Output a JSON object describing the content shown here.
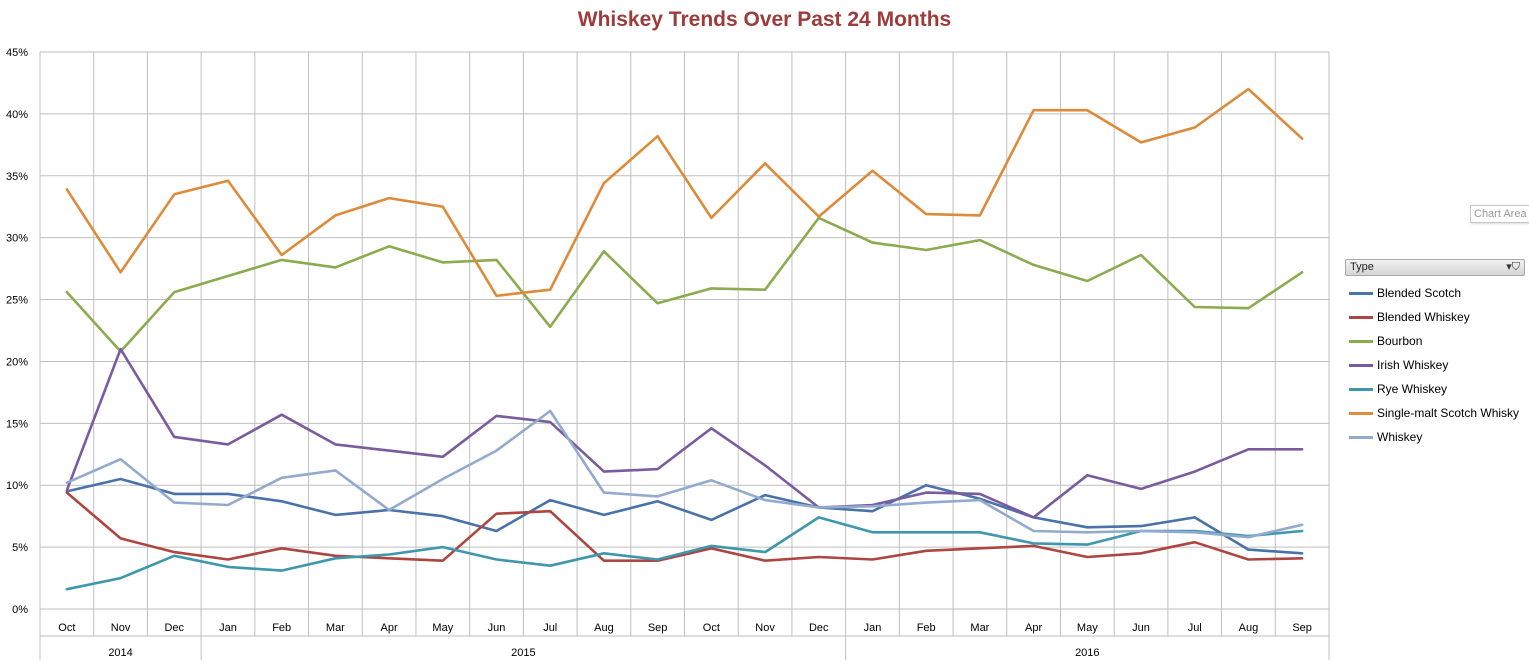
{
  "colors": {
    "title": "#9e3b3b",
    "grid": "#bfbfbf",
    "axis_text": "#000000"
  },
  "tooltip": {
    "text": "Chart Area"
  },
  "legend": {
    "header": "Type",
    "filter_icon": "filter-dropdown-icon"
  },
  "chart_data": {
    "type": "line",
    "title": "Whiskey Trends Over Past 24 Months",
    "categories": [
      "Oct",
      "Nov",
      "Dec",
      "Jan",
      "Feb",
      "Mar",
      "Apr",
      "May",
      "Jun",
      "Jul",
      "Aug",
      "Sep",
      "Oct",
      "Nov",
      "Dec",
      "Jan",
      "Feb",
      "Mar",
      "Apr",
      "May",
      "Jun",
      "Jul",
      "Aug",
      "Sep"
    ],
    "year_groups": [
      {
        "label": "2014",
        "start": 0,
        "end": 2
      },
      {
        "label": "2015",
        "start": 3,
        "end": 14
      },
      {
        "label": "2016",
        "start": 15,
        "end": 23
      }
    ],
    "y_ticks": [
      "0%",
      "5%",
      "10%",
      "15%",
      "20%",
      "25%",
      "30%",
      "35%",
      "40%",
      "45%"
    ],
    "ylim": [
      0,
      45
    ],
    "grid": true,
    "legend_position": "right",
    "series": [
      {
        "name": "Blended Scotch",
        "color": "#4a72aa",
        "values": [
          9.5,
          10.5,
          9.3,
          9.3,
          8.7,
          7.6,
          8.0,
          7.5,
          6.3,
          8.8,
          7.6,
          8.7,
          7.2,
          9.2,
          8.2,
          7.9,
          10.0,
          8.9,
          7.4,
          6.6,
          6.7,
          7.4,
          4.8,
          4.5
        ]
      },
      {
        "name": "Blended Whiskey",
        "color": "#ad4540",
        "values": [
          9.4,
          5.7,
          4.6,
          4.0,
          4.9,
          4.3,
          4.1,
          3.9,
          7.7,
          7.9,
          3.9,
          3.9,
          4.9,
          3.9,
          4.2,
          4.0,
          4.7,
          4.9,
          5.1,
          4.2,
          4.5,
          5.4,
          4.0,
          4.1
        ]
      },
      {
        "name": "Bourbon",
        "color": "#8bab4e",
        "values": [
          25.6,
          20.8,
          25.6,
          26.9,
          28.2,
          27.6,
          29.3,
          28.0,
          28.2,
          22.8,
          28.9,
          24.7,
          25.9,
          25.8,
          31.6,
          29.6,
          29.0,
          29.8,
          27.8,
          26.5,
          28.6,
          24.4,
          24.3,
          27.2
        ]
      },
      {
        "name": "Irish Whiskey",
        "color": "#7a5b9e",
        "values": [
          9.6,
          21.0,
          13.9,
          13.3,
          15.7,
          13.3,
          12.8,
          12.3,
          15.6,
          15.1,
          11.1,
          11.3,
          14.6,
          11.6,
          8.2,
          8.4,
          9.4,
          9.3,
          7.4,
          10.8,
          9.7,
          11.1,
          12.9,
          12.9
        ]
      },
      {
        "name": "Rye Whiskey",
        "color": "#3e97ab",
        "values": [
          1.6,
          2.5,
          4.3,
          3.4,
          3.1,
          4.1,
          4.4,
          5.0,
          4.0,
          3.5,
          4.5,
          4.0,
          5.1,
          4.6,
          7.4,
          6.2,
          6.2,
          6.2,
          5.3,
          5.2,
          6.3,
          6.3,
          5.9,
          6.3
        ]
      },
      {
        "name": "Single-malt Scotch Whisky",
        "color": "#dd8a3a",
        "values": [
          33.9,
          27.2,
          33.5,
          34.6,
          28.6,
          31.8,
          33.2,
          32.5,
          25.3,
          25.8,
          34.4,
          38.2,
          31.6,
          36.0,
          31.7,
          35.4,
          31.9,
          31.8,
          40.3,
          40.3,
          37.7,
          38.9,
          42.0,
          38.0
        ]
      },
      {
        "name": "Whiskey",
        "color": "#93aacf",
        "values": [
          10.2,
          12.1,
          8.6,
          8.4,
          10.6,
          11.2,
          8.0,
          10.5,
          12.8,
          16.0,
          9.4,
          9.1,
          10.4,
          8.8,
          8.2,
          8.3,
          8.6,
          8.8,
          6.3,
          6.2,
          6.3,
          6.2,
          5.8,
          6.8
        ]
      }
    ]
  }
}
